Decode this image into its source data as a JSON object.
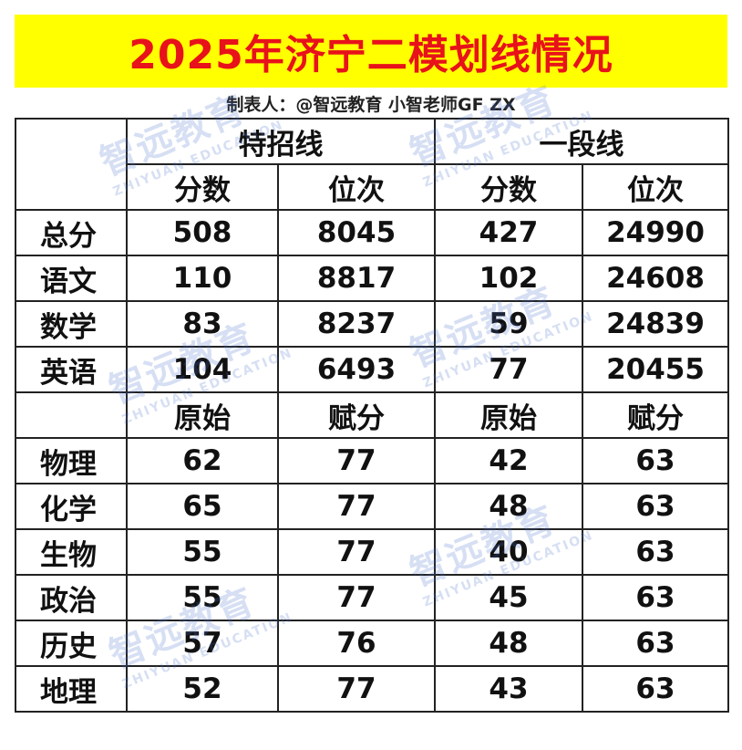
{
  "title": "2025年济宁二模划线情况",
  "maker": "制表人：@智远教育 小智老师GF ZX",
  "watermark": {
    "cn": "智远教育",
    "en": "ZHIYUAN EDUCATION"
  },
  "groups": [
    "特招线",
    "一段线"
  ],
  "subheaders_main": [
    "分数",
    "位次",
    "分数",
    "位次"
  ],
  "subheaders_subject": [
    "原始",
    "赋分",
    "原始",
    "赋分"
  ],
  "main_rows": [
    {
      "label": "总分",
      "cells": [
        "508",
        "8045",
        "427",
        "24990"
      ]
    },
    {
      "label": "语文",
      "cells": [
        "110",
        "8817",
        "102",
        "24608"
      ]
    },
    {
      "label": "数学",
      "cells": [
        "83",
        "8237",
        "59",
        "24839"
      ]
    },
    {
      "label": "英语",
      "cells": [
        "104",
        "6493",
        "77",
        "20455"
      ]
    }
  ],
  "subject_rows": [
    {
      "label": "物理",
      "cells": [
        "62",
        "77",
        "42",
        "63"
      ]
    },
    {
      "label": "化学",
      "cells": [
        "65",
        "77",
        "48",
        "63"
      ]
    },
    {
      "label": "生物",
      "cells": [
        "55",
        "77",
        "40",
        "63"
      ]
    },
    {
      "label": "政治",
      "cells": [
        "55",
        "77",
        "45",
        "63"
      ]
    },
    {
      "label": "历史",
      "cells": [
        "57",
        "76",
        "48",
        "63"
      ]
    },
    {
      "label": "地理",
      "cells": [
        "52",
        "77",
        "43",
        "63"
      ]
    }
  ]
}
